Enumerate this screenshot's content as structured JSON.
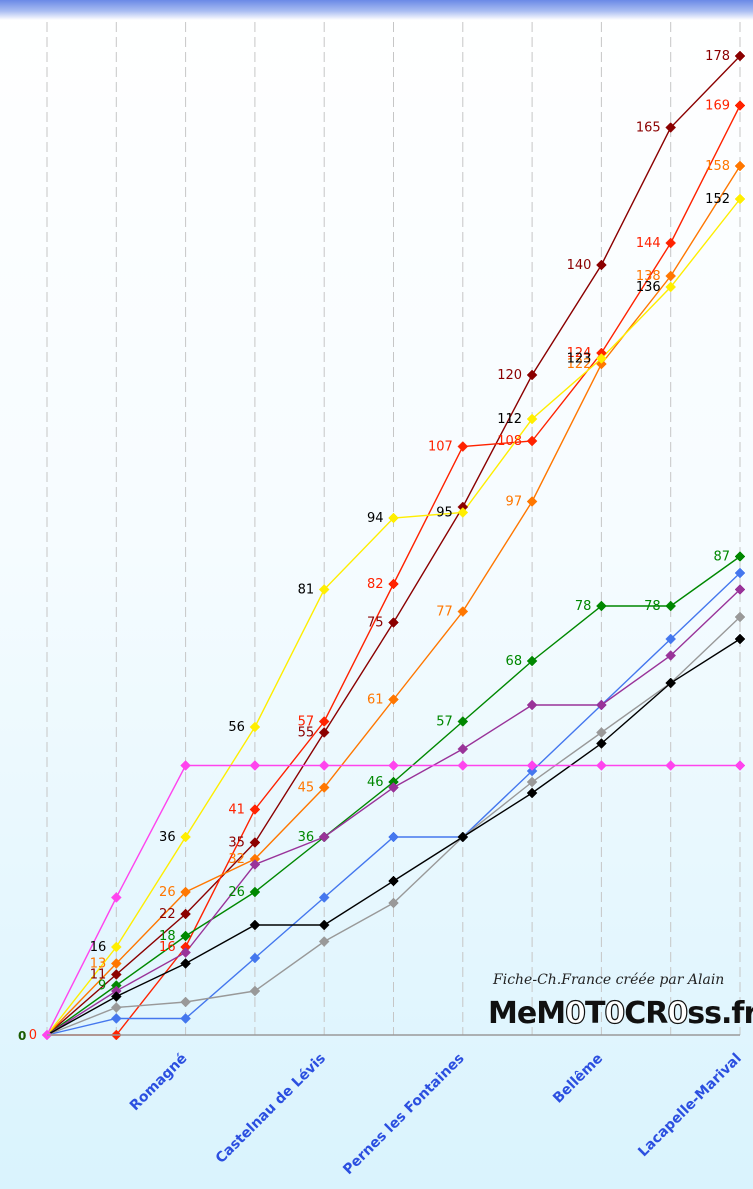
{
  "chart_data": {
    "type": "line",
    "title": "",
    "xlabel": "",
    "ylabel": "",
    "ylim": [
      0,
      180
    ],
    "x_tick_labels": [
      "",
      "",
      "Romagné",
      "",
      "Castelnau de Lévis",
      "",
      "Pernes les Fontaines",
      "",
      "Bellême",
      "",
      "Lacapelle-Marival"
    ],
    "y_zero_label": "0",
    "grid": "vertical dashed",
    "series": [
      {
        "color": "#8b0000",
        "values": [
          0,
          11,
          22,
          35,
          55,
          75,
          96,
          120,
          140,
          165,
          178
        ],
        "labels": [
          "",
          "11",
          "22",
          "35",
          "55",
          "75",
          "",
          "120",
          "140",
          "165",
          "178"
        ],
        "label_color": "#8b0000"
      },
      {
        "color": "#ff2200",
        "values": [
          0,
          0,
          16,
          41,
          57,
          82,
          107,
          108,
          124,
          144,
          169
        ],
        "labels": [
          "0",
          "",
          "16",
          "41",
          "57",
          "82",
          "107",
          "108",
          "124",
          "144",
          "169"
        ],
        "label_color": "#ff2200"
      },
      {
        "color": "#ff7700",
        "values": [
          0,
          13,
          26,
          32,
          45,
          61,
          77,
          97,
          122,
          138,
          158
        ],
        "labels": [
          "",
          "13",
          "26",
          "32",
          "45",
          "61",
          "77",
          "97",
          "122",
          "138",
          "158"
        ],
        "label_color": "#ff7700"
      },
      {
        "color": "#ffee00",
        "values": [
          0,
          16,
          36,
          56,
          81,
          94,
          95,
          112,
          123,
          136,
          152
        ],
        "labels": [
          "",
          "16",
          "36",
          "56",
          "81",
          "94",
          "95",
          "112",
          "123",
          "136",
          "152"
        ],
        "label_color": "#000000"
      },
      {
        "color": "#008800",
        "values": [
          0,
          9,
          18,
          26,
          36,
          46,
          57,
          68,
          78,
          78,
          87
        ],
        "labels": [
          "",
          "9",
          "18",
          "26",
          "36",
          "46",
          "57",
          "68",
          "78",
          "78",
          "87"
        ],
        "label_color": "#008800"
      },
      {
        "color": "#4477ee",
        "values": [
          0,
          3,
          3,
          14,
          25,
          36,
          36,
          48,
          60,
          72,
          84
        ],
        "labels": [],
        "label_color": "#4477ee"
      },
      {
        "color": "#993399",
        "values": [
          0,
          8,
          15,
          31,
          36,
          45,
          52,
          60,
          60,
          69,
          81
        ],
        "labels": [],
        "label_color": "#993399"
      },
      {
        "color": "#999999",
        "values": [
          0,
          5,
          6,
          8,
          17,
          24,
          36,
          46,
          55,
          64,
          76
        ],
        "labels": [],
        "label_color": "#999999"
      },
      {
        "color": "#000000",
        "values": [
          0,
          7,
          13,
          20,
          20,
          28,
          36,
          44,
          53,
          64,
          72
        ],
        "labels": [],
        "label_color": "#000000"
      },
      {
        "color": "#ff44ee",
        "values": [
          0,
          25,
          49,
          49,
          49,
          49,
          49,
          49,
          49,
          49,
          49
        ],
        "labels": [],
        "label_color": "#ff44ee"
      }
    ]
  },
  "footer": {
    "credit": "Fiche-Ch.France créée par Alain",
    "brand_left": "MeM",
    "brand_o1": "0",
    "brand_t": "T",
    "brand_o2": "0",
    "brand_cr": "CR",
    "brand_o3": "0",
    "brand_ss": "ss",
    "brand_fr": ".fr"
  }
}
